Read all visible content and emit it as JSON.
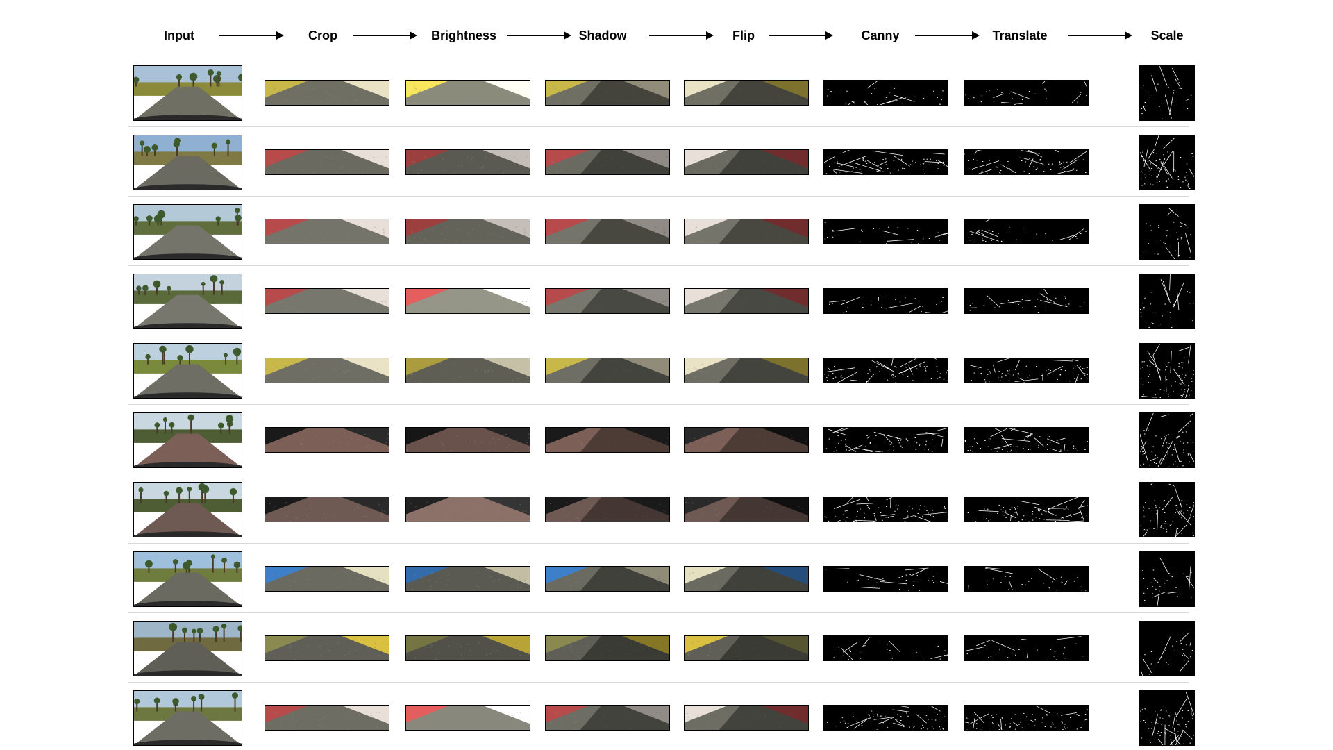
{
  "stages": [
    {
      "label": "Input"
    },
    {
      "label": "Crop"
    },
    {
      "label": "Brightness"
    },
    {
      "label": "Shadow"
    },
    {
      "label": "Flip"
    },
    {
      "label": "Canny"
    },
    {
      "label": "Translate"
    },
    {
      "label": "Scale"
    }
  ],
  "rows": [
    {
      "surface": "asphalt",
      "sky": "#a9c1d6",
      "grass": "#8a8a3a",
      "road": "#6f6f63",
      "side": "yellow",
      "canny": "sparse"
    },
    {
      "surface": "asphalt",
      "sky": "#8fb0d0",
      "grass": "#7f7a45",
      "road": "#6a6a60",
      "side": "redwhite",
      "canny": "dense"
    },
    {
      "surface": "asphalt",
      "sky": "#b3c9d8",
      "grass": "#5f6e3c",
      "road": "#74746a",
      "side": "redwhite",
      "canny": "sparse"
    },
    {
      "surface": "asphalt",
      "sky": "#c3d2dc",
      "grass": "#5a6a3a",
      "road": "#77776d",
      "side": "redwhite",
      "canny": "sparse"
    },
    {
      "surface": "asphalt",
      "sky": "#bcd0de",
      "grass": "#7a8a3c",
      "road": "#6e6e64",
      "side": "yellow",
      "canny": "dense"
    },
    {
      "surface": "brick",
      "sky": "#c8d7e0",
      "grass": "#4f5d35",
      "road": "#7c6058",
      "side": "dark",
      "canny": "dense"
    },
    {
      "surface": "brick",
      "sky": "#c8d7e0",
      "grass": "#4f5d35",
      "road": "#6f5a53",
      "side": "dark",
      "canny": "dense"
    },
    {
      "surface": "asphalt",
      "sky": "#9fc0dc",
      "grass": "#6e7c3d",
      "road": "#6a6a60",
      "side": "bluewater",
      "canny": "sparse"
    },
    {
      "surface": "asphalt",
      "sky": "#9fb6c8",
      "grass": "#6f6a40",
      "road": "#5f5f57",
      "side": "yellowline",
      "canny": "sparse"
    },
    {
      "surface": "asphalt",
      "sky": "#b0c8da",
      "grass": "#6c7840",
      "road": "#6d6d63",
      "side": "redwhite",
      "canny": "dense"
    }
  ]
}
